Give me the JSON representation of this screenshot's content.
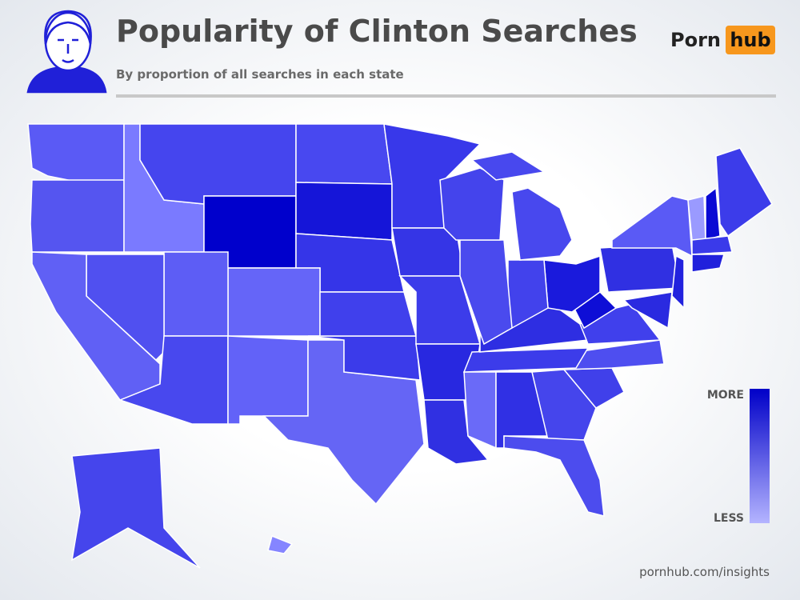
{
  "header": {
    "title": "Popularity of Clinton Searches",
    "subtitle": "By proportion of all searches in each state"
  },
  "logo": {
    "left": "Porn",
    "right": "hub"
  },
  "legend": {
    "top": "MORE",
    "bottom": "LESS",
    "colors": [
      "#0000c8",
      "#b4b4ff"
    ]
  },
  "footer": "pornhub.com/insights",
  "map": {
    "region_colors": [
      "#5a5af5",
      "#5555f0",
      "#7a7aff",
      "#4545ee",
      "#0000cc",
      "#4848f0",
      "#1515d8",
      "#3535e8",
      "#6565f8",
      "#5d5df5",
      "#5050f0",
      "#6060f5",
      "#4848ee",
      "#6262f8",
      "#6565f5",
      "#3b3bea",
      "#4040ec",
      "#3838ea",
      "#3535e6",
      "#3c3cea",
      "#2828e0",
      "#3030e2",
      "#6a6af8",
      "#3030e4",
      "#4545ec",
      "#4c4cee",
      "#4040ea",
      "#4e4ef0",
      "#3c3cea",
      "#2e2ee2",
      "#4040ec",
      "#0e0ed6",
      "#1a1adc",
      "#4242ec",
      "#4a4aee",
      "#4444ec",
      "#4848ee",
      "#4848ee",
      "#3030e2",
      "#5a5af5",
      "#2222de",
      "#2a2ae0",
      "#9a9aff",
      "#0a0ad4",
      "#3c3cea",
      "#3a3aea",
      "#2020dc",
      "#4545ec",
      "#8585ff"
    ]
  }
}
